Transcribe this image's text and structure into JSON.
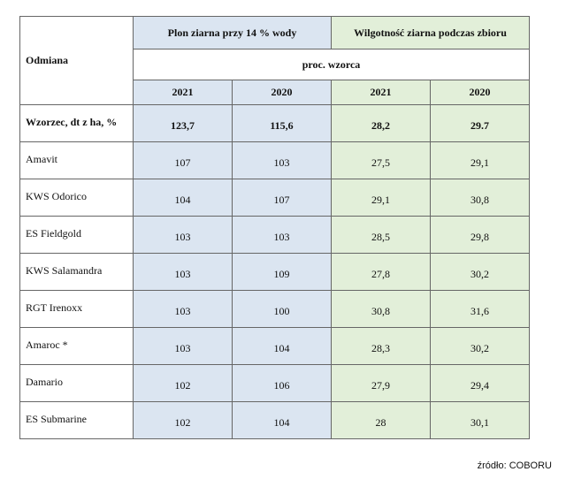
{
  "table": {
    "header": {
      "variety": "Odmiana",
      "yield": "Plon ziarna przy 14 % wody",
      "moisture": "Wilgotność ziarna podczas zbioru",
      "unit": "proc. wzorca",
      "years": [
        2021,
        2020,
        2021,
        2020
      ]
    },
    "standard": {
      "label": "Wzorzec, dt z ha, %",
      "values": [
        "123,7",
        "115,6",
        "28,2",
        "29.7"
      ]
    },
    "rows": [
      {
        "name": "Amavit",
        "values": [
          107,
          103,
          "27,5",
          "29,1"
        ]
      },
      {
        "name": "KWS Odorico",
        "values": [
          104,
          107,
          "29,1",
          "30,8"
        ]
      },
      {
        "name": "ES Fieldgold",
        "values": [
          103,
          103,
          "28,5",
          "29,8"
        ]
      },
      {
        "name": "KWS Salamandra",
        "values": [
          103,
          109,
          "27,8",
          "30,2"
        ]
      },
      {
        "name": "RGT Irenoxx",
        "values": [
          103,
          100,
          "30,8",
          "31,6"
        ]
      },
      {
        "name": "Amaroc *",
        "values": [
          103,
          104,
          "28,3",
          "30,2"
        ]
      },
      {
        "name": "Damario",
        "values": [
          102,
          106,
          "27,9",
          "29,4"
        ]
      },
      {
        "name": "ES Submarine",
        "values": [
          102,
          104,
          28,
          "30,1"
        ]
      }
    ]
  },
  "source": "źródło: COBORU"
}
